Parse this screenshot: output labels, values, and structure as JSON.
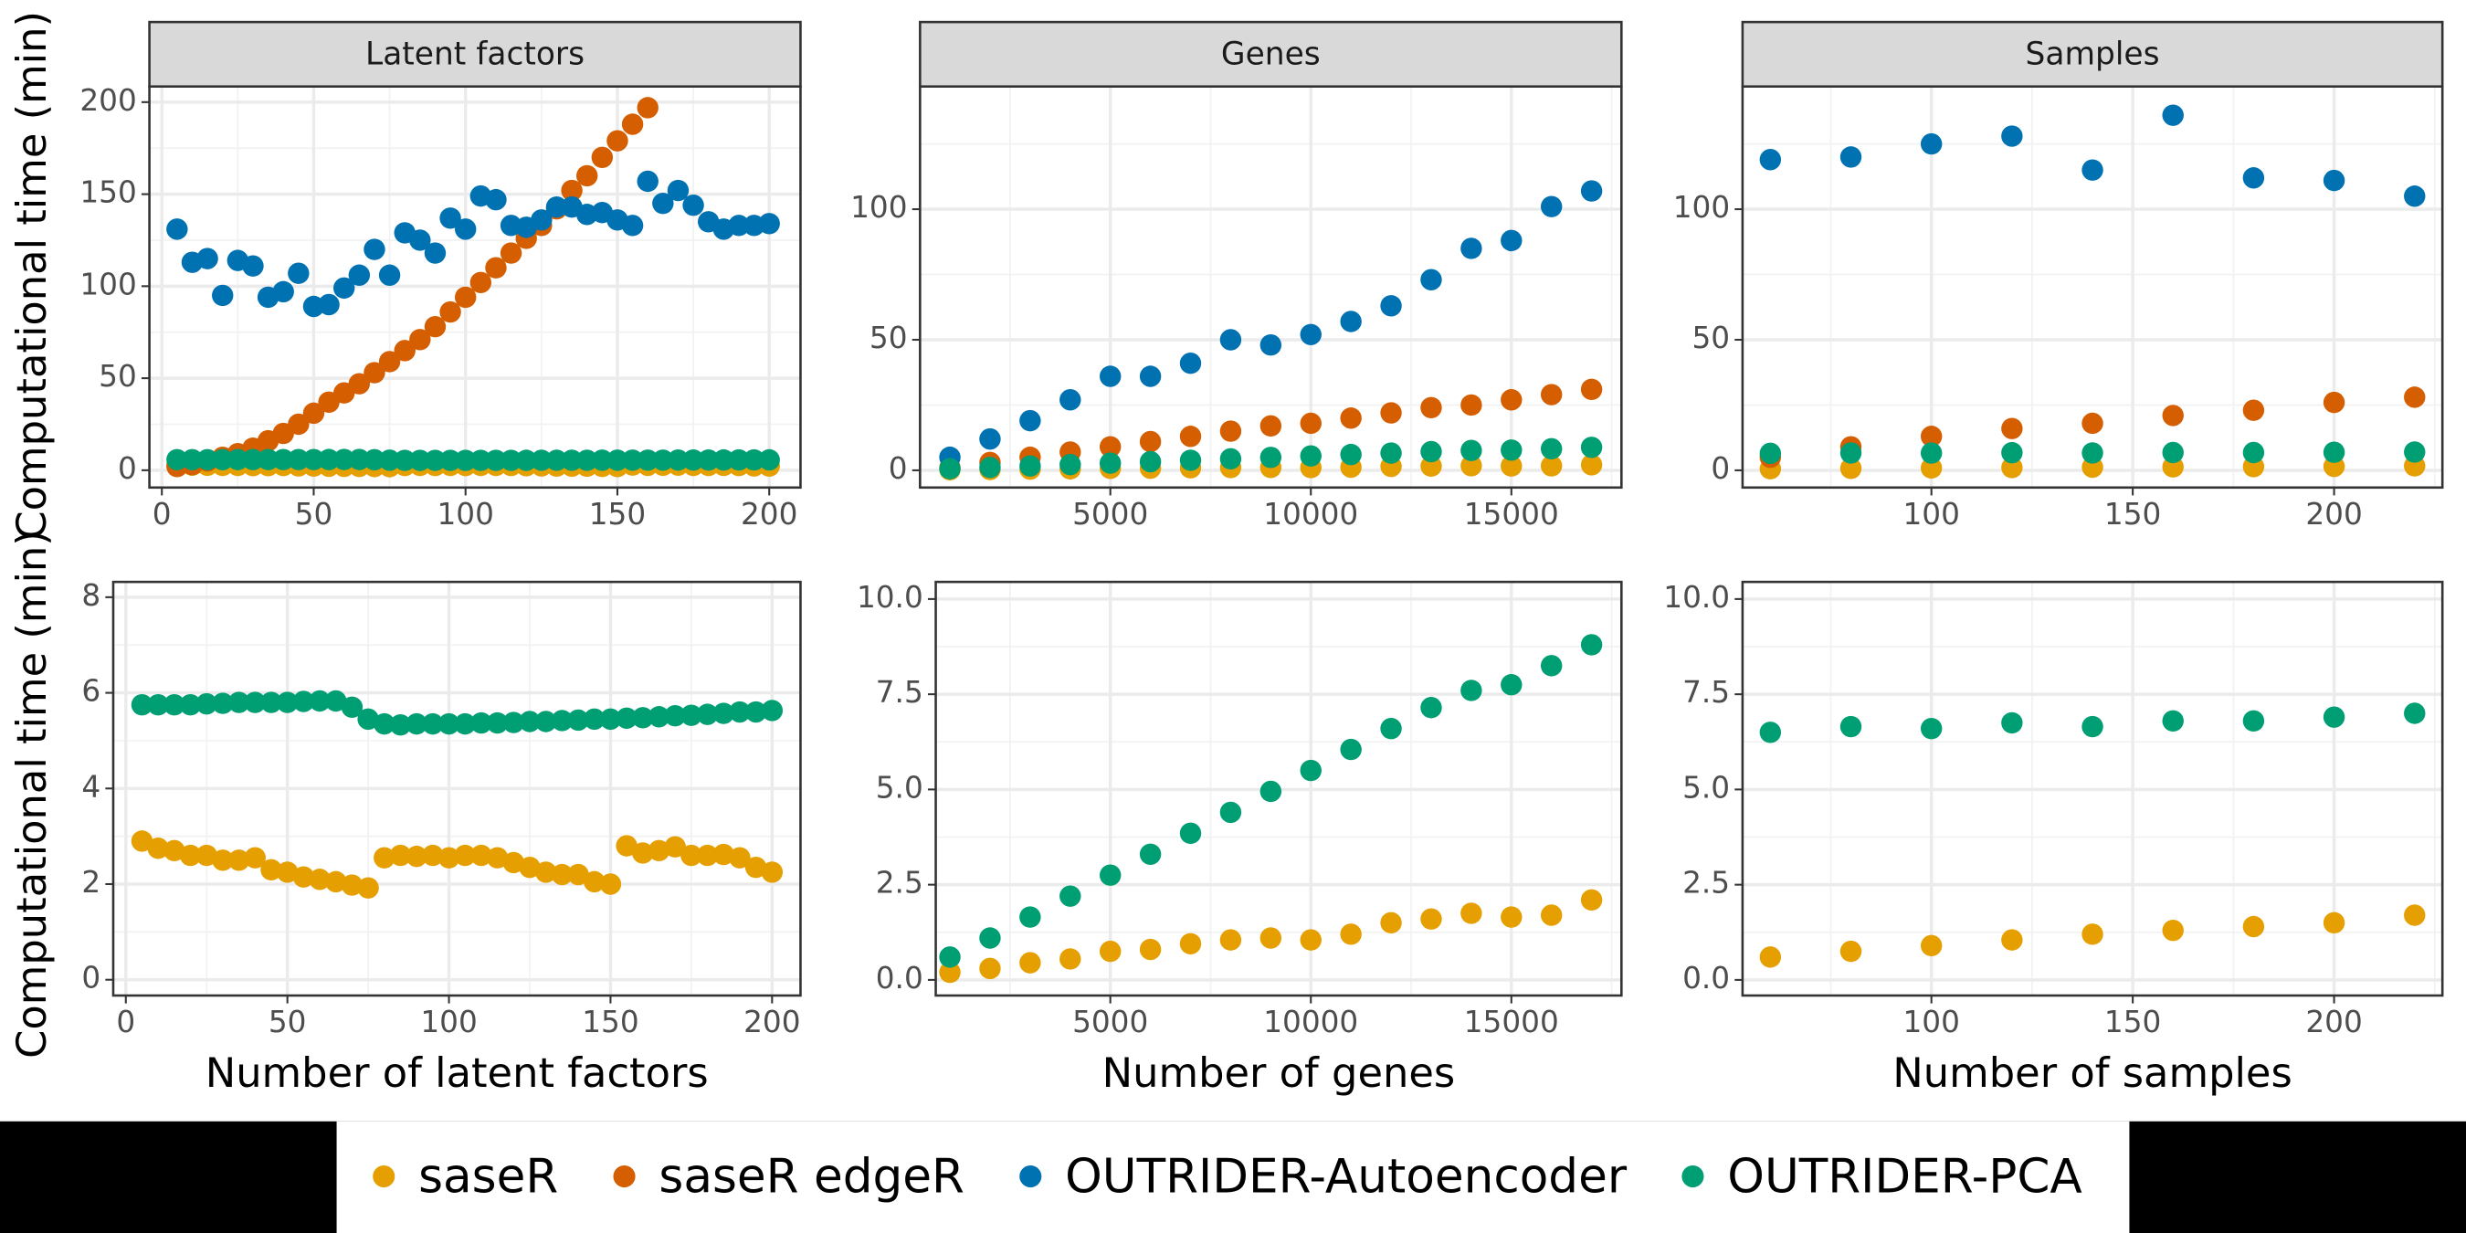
{
  "chart_data": [
    {
      "type": "scatter",
      "title": "Latent factors",
      "ylabel": "Computational time (min)",
      "legend": "bottom",
      "grid": true,
      "x": [
        5,
        10,
        15,
        20,
        25,
        30,
        35,
        40,
        45,
        50,
        55,
        60,
        65,
        70,
        75,
        80,
        85,
        90,
        95,
        100,
        105,
        110,
        115,
        120,
        125,
        130,
        135,
        140,
        145,
        150,
        155,
        160,
        165,
        170,
        175,
        180,
        185,
        190,
        195,
        200
      ],
      "xlim": [
        -4.1,
        210.3
      ],
      "xticks": [
        0,
        50,
        100,
        150,
        200
      ],
      "ylim": [
        -9.4,
        208.5
      ],
      "yticks": [
        0,
        50,
        100,
        150,
        200
      ],
      "series": [
        {
          "name": "saseR",
          "color": "#E69F00",
          "values": [
            2.9,
            2.75,
            2.7,
            2.6,
            2.6,
            2.5,
            2.5,
            2.55,
            2.3,
            2.25,
            2.15,
            2.1,
            2.05,
            1.98,
            1.92,
            2.55,
            2.6,
            2.58,
            2.6,
            2.55,
            2.6,
            2.6,
            2.55,
            2.45,
            2.35,
            2.25,
            2.2,
            2.2,
            2.05,
            2.0,
            2.8,
            2.65,
            2.7,
            2.78,
            2.6,
            2.6,
            2.62,
            2.55,
            2.35,
            2.25
          ]
        },
        {
          "name": "saseR edgeR",
          "color": "#D55E00",
          "values": [
            2,
            3,
            5,
            7,
            9,
            12,
            16,
            20,
            25,
            31,
            37,
            42,
            47,
            53,
            59,
            65,
            71,
            78,
            86,
            94,
            102,
            110,
            118,
            126,
            133,
            142,
            152,
            160,
            170,
            179,
            188,
            197,
            null,
            null,
            null,
            null,
            null,
            null,
            null,
            null
          ]
        },
        {
          "name": "OUTRIDER-Autoencoder",
          "color": "#0072B2",
          "values": [
            131,
            113,
            115,
            95,
            114,
            111,
            94,
            97,
            107,
            89,
            90,
            99,
            106,
            120,
            106,
            129,
            125,
            118,
            137,
            131,
            149,
            147,
            133,
            132,
            136,
            143,
            143,
            139,
            140,
            136,
            133,
            157,
            145,
            152,
            144,
            135,
            131,
            133,
            133,
            134
          ]
        },
        {
          "name": "OUTRIDER-PCA",
          "color": "#009E73",
          "values": [
            5.75,
            5.75,
            5.75,
            5.75,
            5.77,
            5.78,
            5.8,
            5.8,
            5.8,
            5.8,
            5.82,
            5.83,
            5.83,
            5.7,
            5.45,
            5.35,
            5.33,
            5.35,
            5.35,
            5.35,
            5.35,
            5.37,
            5.37,
            5.38,
            5.4,
            5.4,
            5.42,
            5.43,
            5.45,
            5.45,
            5.47,
            5.48,
            5.5,
            5.52,
            5.53,
            5.55,
            5.57,
            5.6,
            5.6,
            5.63
          ]
        }
      ]
    },
    {
      "type": "scatter",
      "title": "Genes",
      "grid": true,
      "x": [
        1000,
        2000,
        3000,
        4000,
        5000,
        6000,
        7000,
        8000,
        9000,
        10000,
        11000,
        12000,
        13000,
        14000,
        15000,
        16000,
        17000
      ],
      "xlim": [
        255,
        17745
      ],
      "xticks": [
        5000,
        10000,
        15000
      ],
      "ylim": [
        -6.6,
        147
      ],
      "yticks": [
        0,
        50,
        100
      ],
      "series": [
        {
          "color": "#E69F00",
          "values": [
            0.2,
            0.3,
            0.45,
            0.55,
            0.75,
            0.8,
            0.95,
            1.05,
            1.1,
            1.05,
            1.2,
            1.5,
            1.6,
            1.75,
            1.65,
            1.7,
            2.1
          ]
        },
        {
          "color": "#D55E00",
          "values": [
            1,
            3,
            5,
            7,
            9,
            11,
            13,
            15,
            17,
            18,
            20,
            22,
            24,
            25,
            27,
            29,
            31
          ]
        },
        {
          "color": "#0072B2",
          "values": [
            5,
            12,
            19,
            27,
            36,
            36,
            41,
            50,
            48,
            52,
            57,
            63,
            73,
            85,
            88,
            101,
            107
          ]
        },
        {
          "color": "#009E73",
          "values": [
            0.6,
            1.1,
            1.65,
            2.2,
            2.75,
            3.3,
            3.85,
            4.4,
            4.95,
            5.5,
            6.05,
            6.6,
            7.15,
            7.6,
            7.75,
            8.25,
            8.8
          ]
        }
      ]
    },
    {
      "type": "scatter",
      "title": "Samples",
      "grid": true,
      "x": [
        60,
        80,
        100,
        120,
        140,
        160,
        180,
        200,
        220
      ],
      "xlim": [
        53.1,
        226.9
      ],
      "xticks": [
        100,
        150,
        200
      ],
      "ylim": [
        -6.6,
        147
      ],
      "yticks": [
        0,
        50,
        100
      ],
      "series": [
        {
          "color": "#E69F00",
          "values": [
            0.6,
            0.75,
            0.9,
            1.05,
            1.2,
            1.3,
            1.4,
            1.5,
            1.7
          ]
        },
        {
          "color": "#D55E00",
          "values": [
            5,
            9,
            13,
            16,
            18,
            21,
            23,
            26,
            28
          ]
        },
        {
          "color": "#0072B2",
          "values": [
            119,
            120,
            125,
            128,
            115,
            136,
            112,
            111,
            105
          ]
        },
        {
          "color": "#009E73",
          "values": [
            6.5,
            6.65,
            6.6,
            6.75,
            6.65,
            6.8,
            6.8,
            6.9,
            7.0
          ]
        }
      ]
    },
    {
      "type": "scatter",
      "ylabel": "Computational time (min)",
      "xlabel": "Number of latent factors",
      "grid": true,
      "x": [
        5,
        10,
        15,
        20,
        25,
        30,
        35,
        40,
        45,
        50,
        55,
        60,
        65,
        70,
        75,
        80,
        85,
        90,
        95,
        100,
        105,
        110,
        115,
        120,
        125,
        130,
        135,
        140,
        145,
        150,
        155,
        160,
        165,
        170,
        175,
        180,
        185,
        190,
        195,
        200
      ],
      "xlim": [
        -3.9,
        208.8
      ],
      "xticks": [
        0,
        50,
        100,
        150,
        200
      ],
      "ylim": [
        -0.33,
        8.32
      ],
      "yticks": [
        0,
        2,
        4,
        6,
        8
      ],
      "series": [
        {
          "color": "#E69F00",
          "values": [
            2.9,
            2.75,
            2.7,
            2.6,
            2.6,
            2.5,
            2.5,
            2.55,
            2.3,
            2.25,
            2.15,
            2.1,
            2.05,
            1.98,
            1.92,
            2.55,
            2.6,
            2.58,
            2.6,
            2.55,
            2.6,
            2.6,
            2.55,
            2.45,
            2.35,
            2.25,
            2.2,
            2.2,
            2.05,
            2.0,
            2.8,
            2.65,
            2.7,
            2.78,
            2.6,
            2.6,
            2.62,
            2.55,
            2.35,
            2.25
          ]
        },
        {
          "color": "#009E73",
          "values": [
            5.75,
            5.75,
            5.75,
            5.75,
            5.77,
            5.78,
            5.8,
            5.8,
            5.8,
            5.8,
            5.82,
            5.83,
            5.83,
            5.7,
            5.45,
            5.35,
            5.33,
            5.35,
            5.35,
            5.35,
            5.35,
            5.37,
            5.37,
            5.38,
            5.4,
            5.4,
            5.42,
            5.43,
            5.45,
            5.45,
            5.47,
            5.48,
            5.5,
            5.52,
            5.53,
            5.55,
            5.57,
            5.6,
            5.6,
            5.63
          ]
        }
      ]
    },
    {
      "type": "scatter",
      "xlabel": "Number of genes",
      "grid": true,
      "x": [
        1000,
        2000,
        3000,
        4000,
        5000,
        6000,
        7000,
        8000,
        9000,
        10000,
        11000,
        12000,
        13000,
        14000,
        15000,
        16000,
        17000
      ],
      "xlim": [
        647,
        17745
      ],
      "xticks": [
        5000,
        10000,
        15000
      ],
      "ylim": [
        -0.41,
        10.45
      ],
      "yticks": [
        {
          "value": 0,
          "label": "0.0"
        },
        2.5,
        {
          "value": 5,
          "label": "5.0"
        },
        7.5,
        {
          "value": 10,
          "label": "10.0"
        }
      ],
      "series": [
        {
          "color": "#E69F00",
          "values": [
            0.2,
            0.3,
            0.45,
            0.55,
            0.75,
            0.8,
            0.95,
            1.05,
            1.1,
            1.05,
            1.2,
            1.5,
            1.6,
            1.75,
            1.65,
            1.7,
            2.1
          ]
        },
        {
          "color": "#009E73",
          "values": [
            0.6,
            1.1,
            1.65,
            2.2,
            2.75,
            3.3,
            3.85,
            4.4,
            4.95,
            5.5,
            6.05,
            6.6,
            7.15,
            7.6,
            7.75,
            8.25,
            8.8
          ]
        }
      ]
    },
    {
      "type": "scatter",
      "xlabel": "Number of samples",
      "grid": true,
      "x": [
        60,
        80,
        100,
        120,
        140,
        160,
        180,
        200,
        220
      ],
      "xlim": [
        53.1,
        226.9
      ],
      "xticks": [
        100,
        150,
        200
      ],
      "ylim": [
        -0.41,
        10.45
      ],
      "yticks": [
        {
          "value": 0,
          "label": "0.0"
        },
        2.5,
        {
          "value": 5,
          "label": "5.0"
        },
        7.5,
        {
          "value": 10,
          "label": "10.0"
        }
      ],
      "series": [
        {
          "color": "#E69F00",
          "values": [
            0.6,
            0.75,
            0.9,
            1.05,
            1.2,
            1.3,
            1.4,
            1.5,
            1.7
          ]
        },
        {
          "color": "#009E73",
          "values": [
            6.5,
            6.65,
            6.6,
            6.75,
            6.65,
            6.8,
            6.8,
            6.9,
            7.0
          ]
        }
      ]
    }
  ]
}
